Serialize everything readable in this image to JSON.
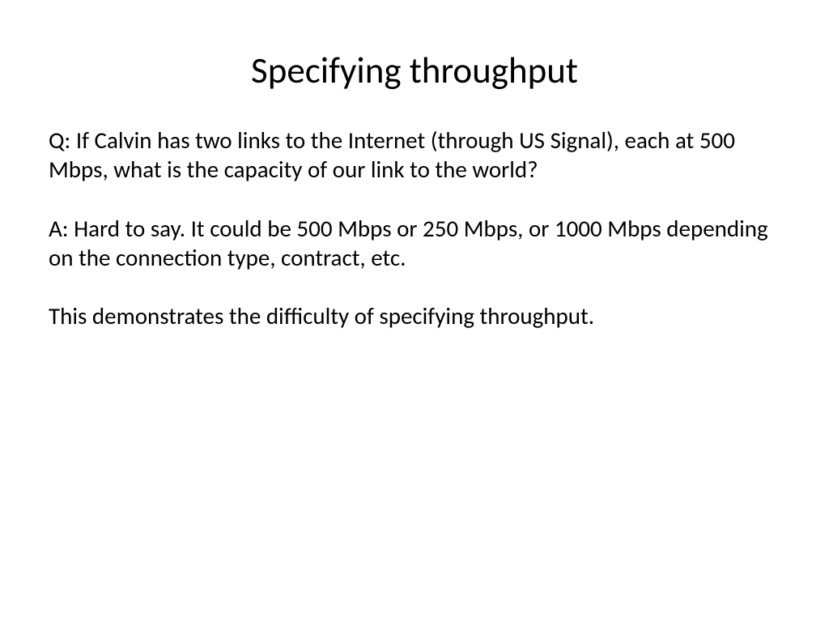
{
  "slide": {
    "title": "Specifying throughput",
    "paragraphs": [
      "Q: If Calvin has two links to the Internet (through US Signal), each at 500 Mbps, what is the capacity of our link to the world?",
      "A: Hard to say.  It could be 500 Mbps or 250 Mbps, or 1000 Mbps depending on the connection type, contract, etc.",
      "This demonstrates the difficulty of specifying throughput."
    ],
    "background_color": "#ffffff",
    "text_color": "#000000",
    "title_fontsize": 45,
    "body_fontsize": 29,
    "font_family": "Calibri"
  }
}
